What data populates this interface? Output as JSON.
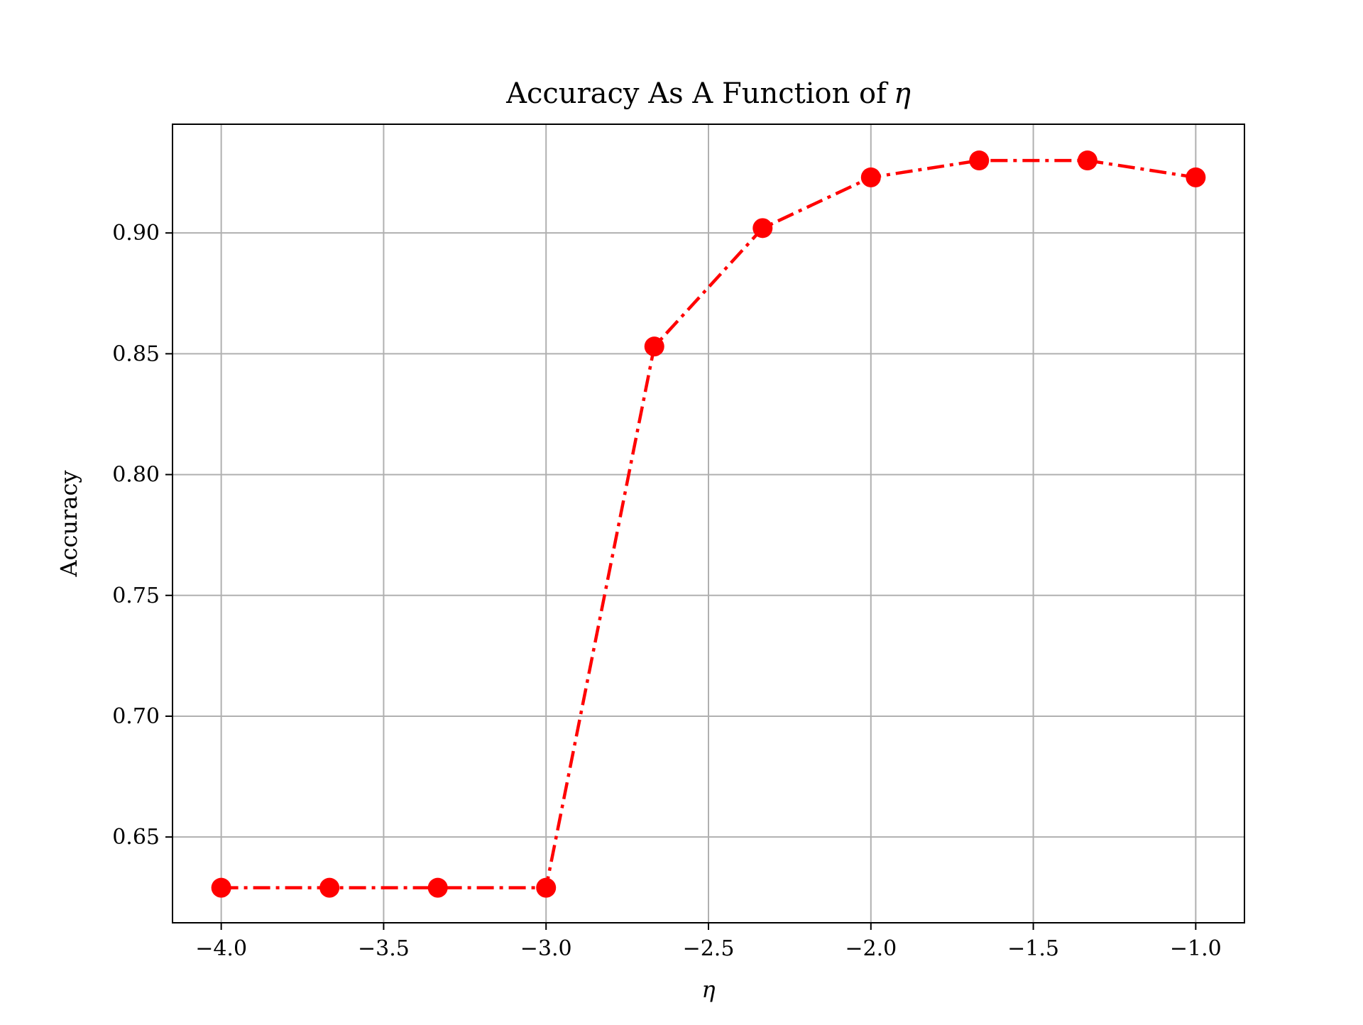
{
  "chart_data": {
    "type": "line",
    "title": "Accuracy As A Function of η",
    "title_prefix": "Accuracy As A Function of",
    "title_symbol": "η",
    "xlabel": "η",
    "ylabel": "Accuracy",
    "xlim": [
      -4.15,
      -0.85
    ],
    "ylim": [
      0.6145,
      0.945
    ],
    "x_ticks": [
      -4.0,
      -3.5,
      -3.0,
      -2.5,
      -2.0,
      -1.5,
      -1.0
    ],
    "x_tick_labels": [
      "−4.0",
      "−3.5",
      "−3.0",
      "−2.5",
      "−2.0",
      "−1.5",
      "−1.0"
    ],
    "y_ticks": [
      0.65,
      0.7,
      0.75,
      0.8,
      0.85,
      0.9
    ],
    "y_tick_labels": [
      "0.65",
      "0.70",
      "0.75",
      "0.80",
      "0.85",
      "0.90"
    ],
    "grid": true,
    "line_style": "dash-dot",
    "marker": "circle",
    "color": "#ff0000",
    "series": [
      {
        "x": [
          -4.0,
          -3.6667,
          -3.3333,
          -3.0,
          -2.6667,
          -2.3333,
          -2.0,
          -1.6667,
          -1.3333,
          -1.0
        ],
        "values": [
          0.629,
          0.629,
          0.629,
          0.629,
          0.853,
          0.902,
          0.923,
          0.93,
          0.93,
          0.923
        ]
      }
    ]
  }
}
